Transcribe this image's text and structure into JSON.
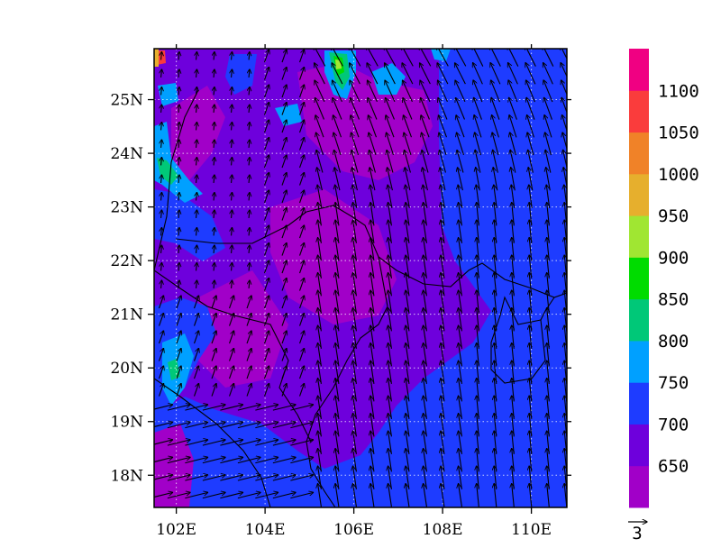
{
  "chart_data": {
    "type": "heatmap",
    "subtype": "map-filled-contour-with-wind-vectors",
    "x_axis": {
      "ticks": [
        102,
        104,
        106,
        108,
        110
      ],
      "tick_labels": [
        "102E",
        "104E",
        "106E",
        "108E",
        "110E"
      ],
      "range": [
        101.5,
        110.8
      ]
    },
    "y_axis": {
      "ticks": [
        18,
        19,
        20,
        21,
        22,
        23,
        24,
        25
      ],
      "tick_labels": [
        "18N",
        "19N",
        "20N",
        "21N",
        "22N",
        "23N",
        "24N",
        "25N"
      ],
      "range": [
        17.4,
        25.95
      ]
    },
    "grid": true,
    "colorbar": {
      "placement": "right",
      "levels": [
        650,
        700,
        750,
        800,
        850,
        900,
        950,
        1000,
        1050,
        1100
      ],
      "level_labels": [
        "650",
        "700",
        "750",
        "800",
        "850",
        "900",
        "950",
        "1000",
        "1050",
        "1100"
      ],
      "colors": [
        "#a100c8",
        "#6e00dc",
        "#1e3cff",
        "#00a0ff",
        "#00c878",
        "#00dc00",
        "#a0e632",
        "#e6af2d",
        "#f08228",
        "#fa3c3c",
        "#f00082"
      ]
    },
    "dominant_fields": [
      {
        "region": "north and central",
        "range": "650-700"
      },
      {
        "region": "south and east",
        "range": "700-750"
      },
      {
        "region": "scattered patches near mountains",
        "range": "750-1100"
      }
    ],
    "vectors": {
      "reference_label": "3",
      "pattern": "southerly flow over the east and center, southwesterly in the southwest, weak and variable in the northwest",
      "color": "#000000"
    }
  }
}
